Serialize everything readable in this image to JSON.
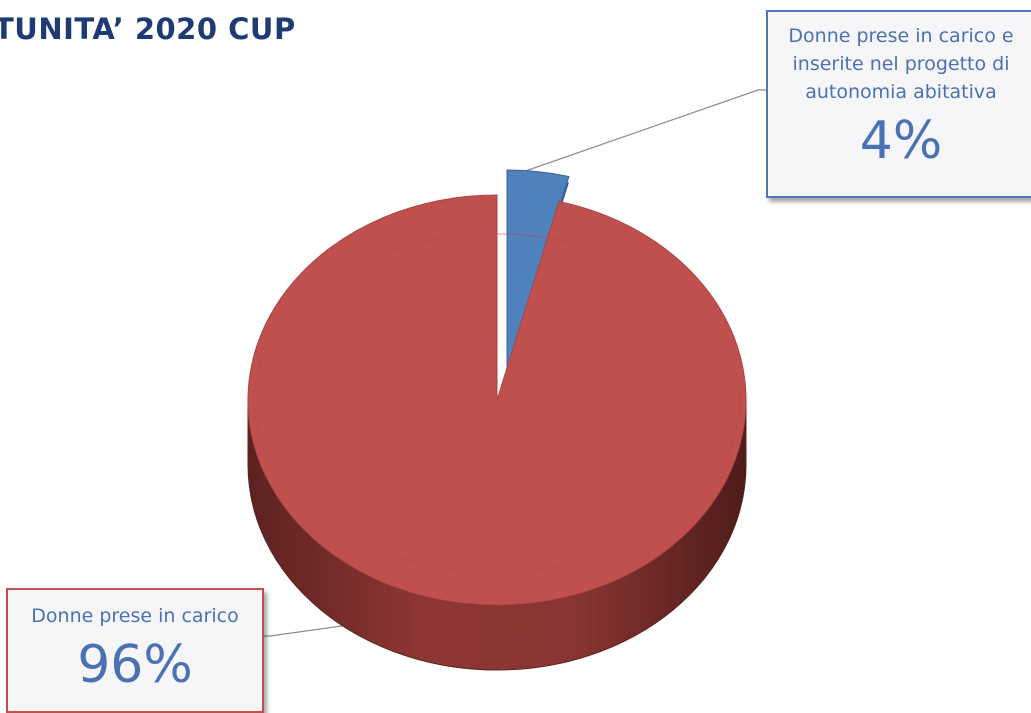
{
  "chart_data": {
    "type": "pie",
    "title": "TUNITA’ 2020 CUP",
    "slices": [
      {
        "label": "Donne prese in carico e inserite nel progetto di autonomia abitativa",
        "label_lines": [
          "Donne prese in carico e",
          "inserite nel progetto di",
          "autonomia abitativa"
        ],
        "value": 4,
        "display": "4%",
        "color": "#4f81bd"
      },
      {
        "label": "Donne prese in carico",
        "label_lines": [
          "Donne prese in carico"
        ],
        "value": 96,
        "display": "96%",
        "color": "#c0504d"
      }
    ],
    "style": "3d",
    "legend": "none"
  }
}
